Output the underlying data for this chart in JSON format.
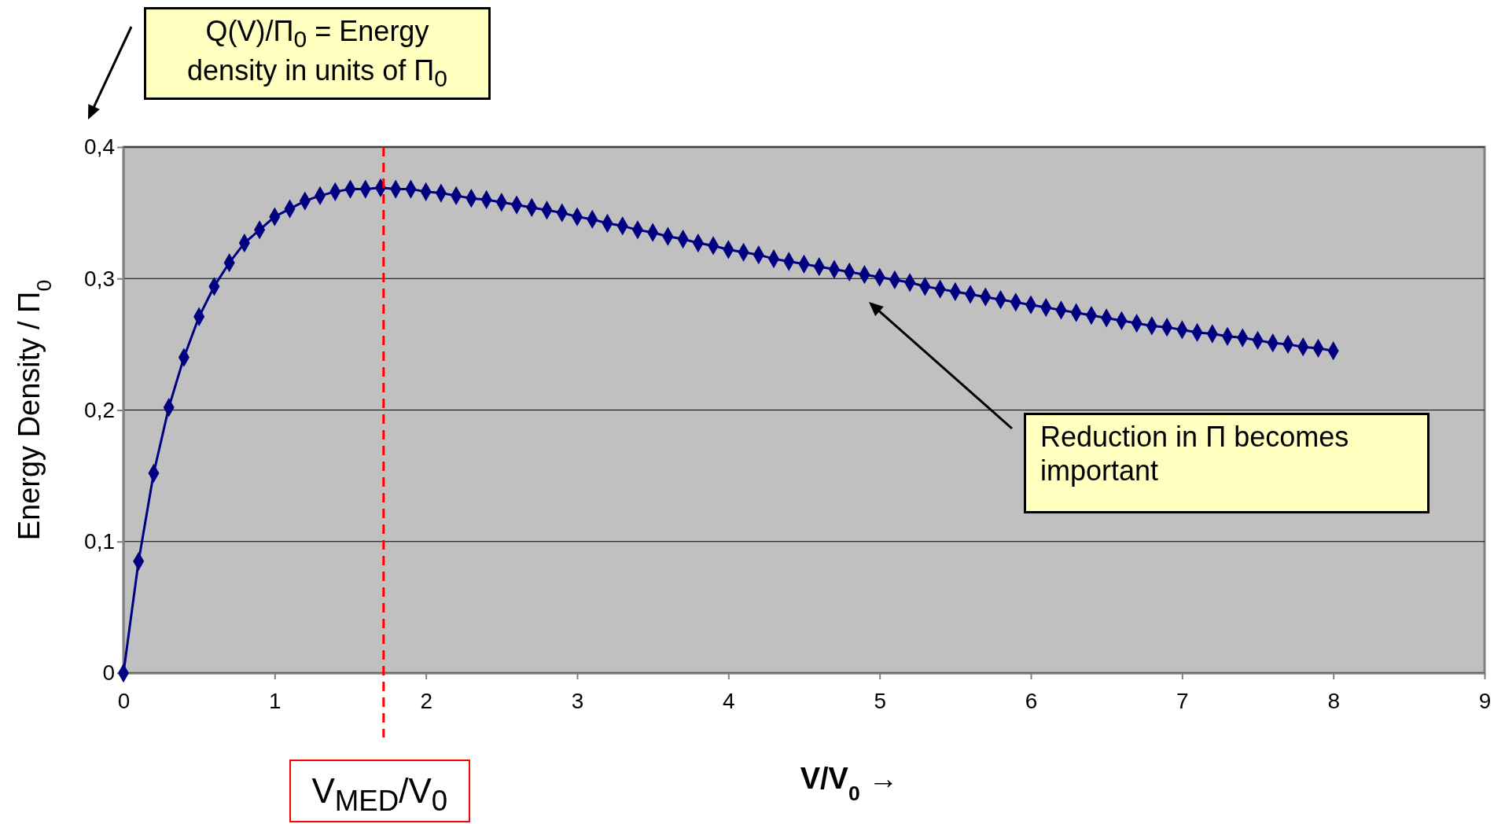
{
  "chart_data": {
    "type": "line",
    "xlabel": "V/V$_{0}$  →",
    "ylabel": "Energy Density / Π$_{0}$",
    "x": [
      0,
      0.1,
      0.2,
      0.3,
      0.4,
      0.5,
      0.6,
      0.7,
      0.8,
      0.9,
      1,
      1.1,
      1.2,
      1.3,
      1.4,
      1.5,
      1.6,
      1.7,
      1.8,
      1.9,
      2,
      2.1,
      2.2,
      2.3,
      2.4,
      2.5,
      2.6,
      2.7,
      2.8,
      2.9,
      3,
      3.1,
      3.2,
      3.3,
      3.4,
      3.5,
      3.6,
      3.7,
      3.8,
      3.9,
      4,
      4.1,
      4.2,
      4.3,
      4.4,
      4.5,
      4.6,
      4.7,
      4.8,
      4.9,
      5,
      5.1,
      5.2,
      5.3,
      5.4,
      5.5,
      5.6,
      5.7,
      5.8,
      5.9,
      6,
      6.1,
      6.2,
      6.3,
      6.4,
      6.5,
      6.6,
      6.7,
      6.8,
      6.9,
      7,
      7.1,
      7.2,
      7.3,
      7.4,
      7.5,
      7.6,
      7.7,
      7.8,
      7.9,
      8
    ],
    "series": [
      {
        "color": "#000080",
        "values": [
          0,
          0.085,
          0.152,
          0.202,
          0.24,
          0.271,
          0.294,
          0.312,
          0.327,
          0.337,
          0.347,
          0.353,
          0.359,
          0.363,
          0.366,
          0.368,
          0.368,
          0.369,
          0.368,
          0.368,
          0.366,
          0.365,
          0.363,
          0.361,
          0.36,
          0.358,
          0.356,
          0.354,
          0.352,
          0.35,
          0.347,
          0.345,
          0.342,
          0.34,
          0.337,
          0.335,
          0.332,
          0.33,
          0.327,
          0.325,
          0.322,
          0.32,
          0.318,
          0.315,
          0.313,
          0.311,
          0.309,
          0.307,
          0.305,
          0.303,
          0.301,
          0.299,
          0.297,
          0.294,
          0.292,
          0.29,
          0.288,
          0.286,
          0.284,
          0.282,
          0.28,
          0.278,
          0.276,
          0.274,
          0.272,
          0.27,
          0.268,
          0.266,
          0.264,
          0.263,
          0.261,
          0.259,
          0.258,
          0.256,
          0.255,
          0.253,
          0.251,
          0.25,
          0.248,
          0.247,
          0.245
        ]
      }
    ],
    "xlim": [
      0,
      9
    ],
    "xticks": [
      0,
      1,
      2,
      3,
      4,
      5,
      6,
      7,
      8,
      9
    ],
    "ylim": [
      0,
      0.4
    ],
    "yticks": [
      0,
      {
        "value": 0.1,
        "label": "0,1"
      },
      {
        "value": 0.2,
        "label": "0,2"
      },
      {
        "value": 0.3,
        "label": "0,3"
      },
      {
        "value": 0.4,
        "label": "0,4"
      }
    ],
    "grid": "y",
    "marker": "diamond",
    "line_style": "solid",
    "ref_lines": [
      {
        "axis": "x",
        "value": 1.72,
        "label": "V$_{MED}$/V$_{0}$",
        "color": "#ff0000",
        "line_style": "dashed"
      }
    ],
    "annotations": [
      "Q(V)/Π$_{0}$ = Energy density in units of Π$_{0}$",
      "Reduction in Π becomes important"
    ]
  }
}
